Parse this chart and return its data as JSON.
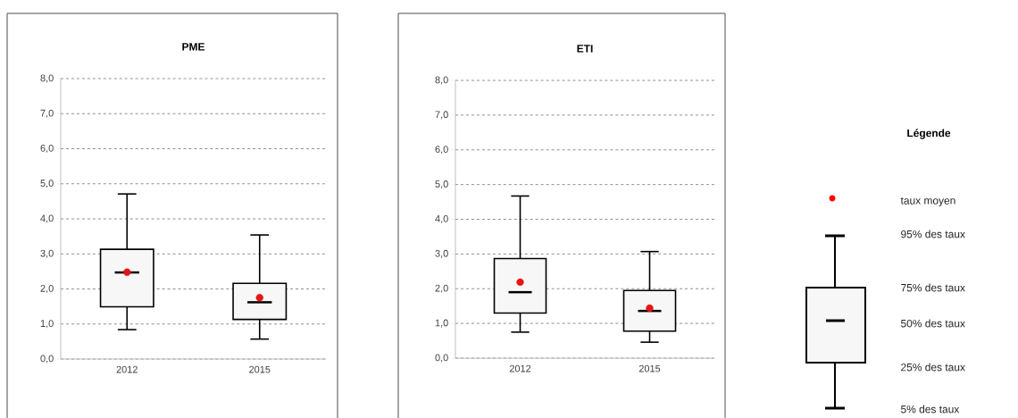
{
  "chart_data": [
    {
      "type": "box",
      "title": "PME",
      "categories": [
        "2012",
        "2015"
      ],
      "boxes": [
        {
          "low": 0.84,
          "q1": 1.49,
          "median": 2.47,
          "q3": 3.13,
          "high": 4.71,
          "mean": 2.48
        },
        {
          "low": 0.57,
          "q1": 1.13,
          "median": 1.62,
          "q3": 2.16,
          "high": 3.54,
          "mean": 1.75
        }
      ],
      "ylim": [
        0,
        8
      ],
      "yticks": [
        {
          "value": 0,
          "label": "0,0"
        },
        {
          "value": 1,
          "label": "1,0"
        },
        {
          "value": 2,
          "label": "2,0"
        },
        {
          "value": 3,
          "label": "3,0"
        },
        {
          "value": 4,
          "label": "4,0"
        },
        {
          "value": 5,
          "label": "5,0"
        },
        {
          "value": 6,
          "label": "6,0"
        },
        {
          "value": 7,
          "label": "7,0"
        },
        {
          "value": 8,
          "label": "8,0"
        }
      ],
      "grid": "y"
    },
    {
      "type": "box",
      "title": "ETI",
      "categories": [
        "2012",
        "2015"
      ],
      "boxes": [
        {
          "low": 0.75,
          "q1": 1.3,
          "median": 1.9,
          "q3": 2.87,
          "high": 4.67,
          "mean": 2.19
        },
        {
          "low": 0.46,
          "q1": 0.78,
          "median": 1.36,
          "q3": 1.95,
          "high": 3.07,
          "mean": 1.44
        }
      ],
      "ylim": [
        0,
        8
      ],
      "yticks": [
        {
          "value": 0,
          "label": "0,0"
        },
        {
          "value": 1,
          "label": "1,0"
        },
        {
          "value": 2,
          "label": "2,0"
        },
        {
          "value": 3,
          "label": "3,0"
        },
        {
          "value": 4,
          "label": "4,0"
        },
        {
          "value": 5,
          "label": "5,0"
        },
        {
          "value": 6,
          "label": "6,0"
        },
        {
          "value": 7,
          "label": "7,0"
        },
        {
          "value": 8,
          "label": "8,0"
        }
      ],
      "grid": "y"
    },
    {
      "type": "other",
      "title": "Légende",
      "annotations": [
        "taux moyen",
        "95% des taux",
        "75% des taux",
        "50% des taux",
        "25% des taux",
        "5% des taux"
      ]
    }
  ]
}
